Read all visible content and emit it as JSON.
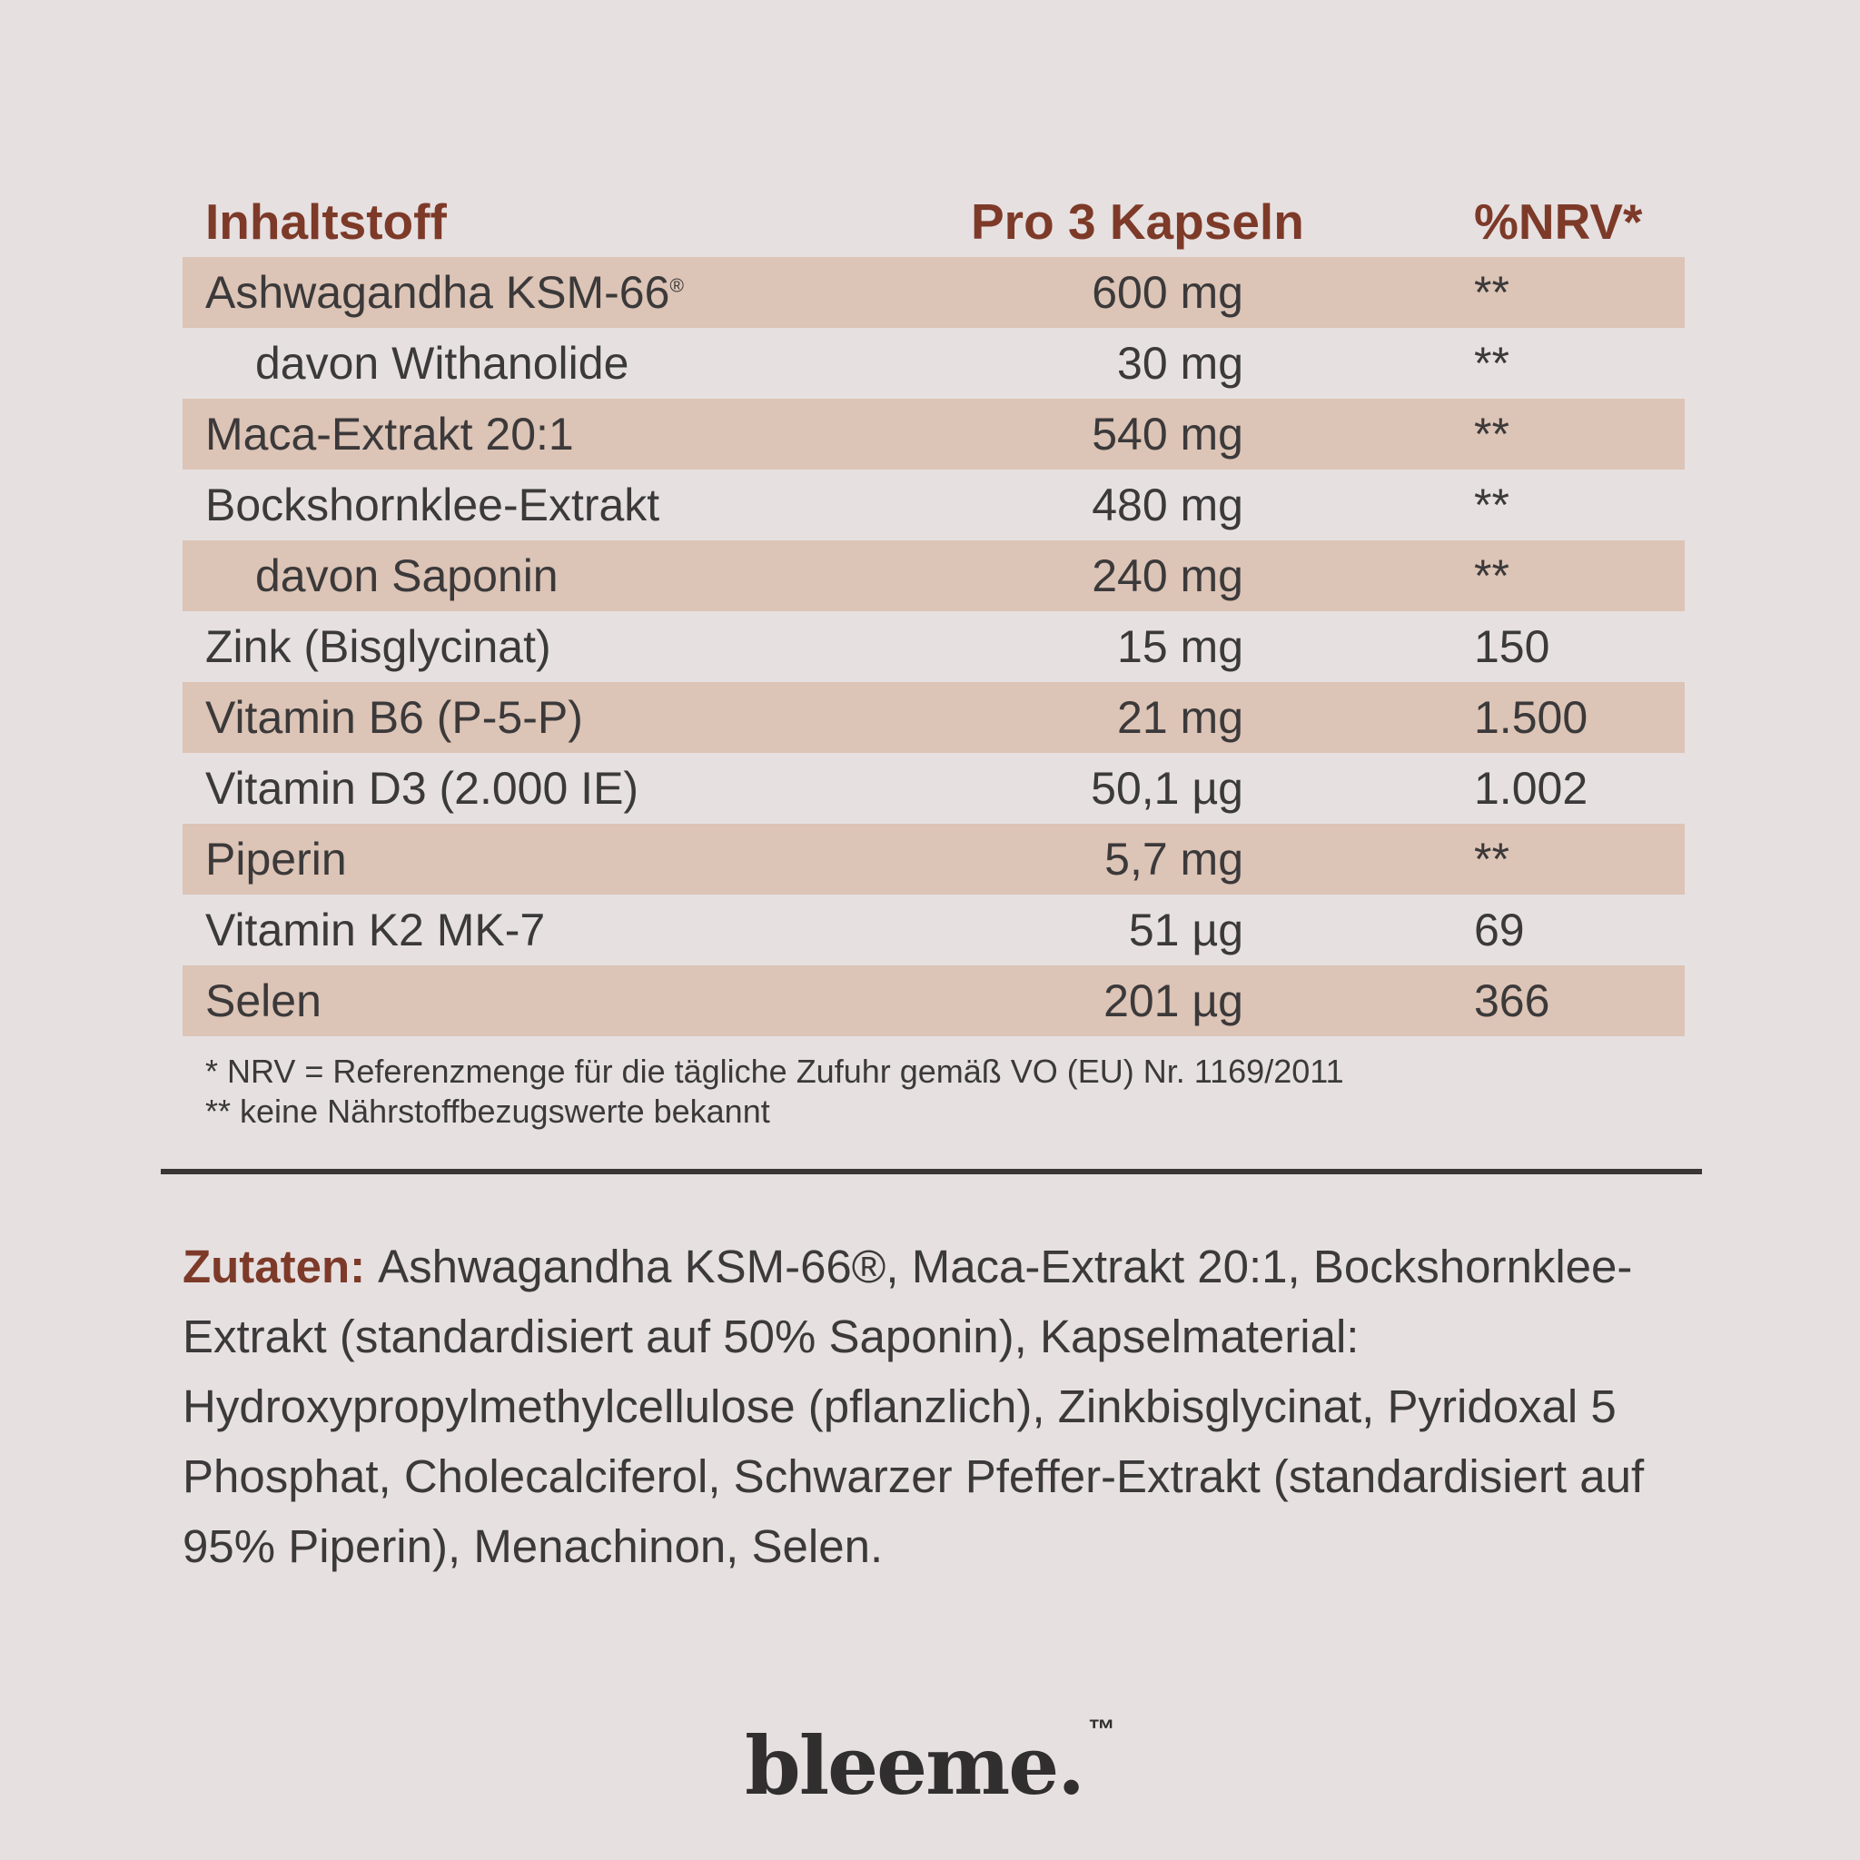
{
  "colors": {
    "background": "#e6e0e1",
    "row_tint": "#dcc4b6",
    "accent_brown": "#7d3a28",
    "text": "#3b393a",
    "divider": "#3a3637",
    "logo": "#312e2f"
  },
  "table": {
    "headers": {
      "ingredient": "Inhaltstoff",
      "amount": "Pro 3 Kapseln",
      "nrv": "%NRV*"
    },
    "rows": [
      {
        "name": "Ashwagandha KSM-66",
        "sup": "®",
        "amount": "600 mg",
        "nrv": "**"
      },
      {
        "name": "davon Withanolide",
        "amount": "30 mg",
        "nrv": "**",
        "indent": true
      },
      {
        "name": "Maca-Extrakt 20:1",
        "amount": "540 mg",
        "nrv": "**"
      },
      {
        "name": "Bockshornklee-Extrakt",
        "amount": "480 mg",
        "nrv": "**"
      },
      {
        "name": "davon Saponin",
        "amount": "240 mg",
        "nrv": "**",
        "indent": true
      },
      {
        "name": "Zink (Bisglycinat)",
        "amount": "15 mg",
        "nrv": "150"
      },
      {
        "name": "Vitamin B6 (P-5-P)",
        "amount": "21 mg",
        "nrv": "1.500"
      },
      {
        "name": "Vitamin D3 (2.000 IE)",
        "amount": "50,1 µg",
        "nrv": "1.002"
      },
      {
        "name": "Piperin",
        "amount": "5,7 mg",
        "nrv": "**"
      },
      {
        "name": "Vitamin K2 MK-7",
        "amount": "51 µg",
        "nrv": "69"
      },
      {
        "name": "Selen",
        "amount": "201 µg",
        "nrv": "366"
      }
    ]
  },
  "footnotes": [
    "* NRV = Referenzmenge für die tägliche Zufuhr gemäß VO (EU) Nr. 1169/2011",
    "** keine Nährstoffbezugswerte bekannt"
  ],
  "zutaten": {
    "label": "Zutaten:",
    "text": "Ashwagandha KSM-66®, Maca-Extrakt 20:1, Bockshornklee-Extrakt (standardisiert auf 50% Saponin), Kapselmaterial: Hydroxypropylmethylcellulose (pflanzlich), Zinkbisglycinat, Pyridoxal 5 Phosphat, Cholecalciferol, Schwarzer Pfeffer-Extrakt (standardisiert auf 95% Piperin), Menachinon, Selen."
  },
  "logo": {
    "wordmark": "bleeme.",
    "trademark": "™"
  }
}
